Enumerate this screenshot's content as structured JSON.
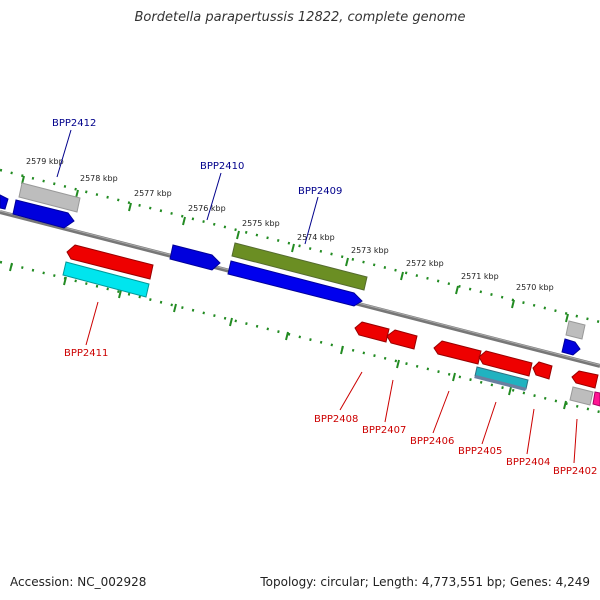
{
  "title": "Bordetella parapertussis 12822, complete genome",
  "footer": {
    "accession": "Accession: NC_002928",
    "summary": "Topology: circular; Length: 4,773,551 bp; Genes: 4,249"
  },
  "colors": {
    "forward_label": "#00008b",
    "reverse_label": "#cc0000",
    "backbone": "#777777",
    "tick": "#228b22"
  },
  "kbp_labels": [
    "2579 kbp",
    "2578 kbp",
    "2577 kbp",
    "2576 kbp",
    "2575 kbp",
    "2574 kbp",
    "2573 kbp",
    "2572 kbp",
    "2571 kbp",
    "2570 kbp"
  ],
  "gene_labels": {
    "BPP2412": "BPP2412",
    "BPP2410": "BPP2410",
    "BPP2409": "BPP2409",
    "BPP2411": "BPP2411",
    "BPP2408": "BPP2408",
    "BPP2407": "BPP2407",
    "BPP2406": "BPP2406",
    "BPP2405": "BPP2405",
    "BPP2404": "BPP2404",
    "BPP2402": "BPP2402"
  }
}
